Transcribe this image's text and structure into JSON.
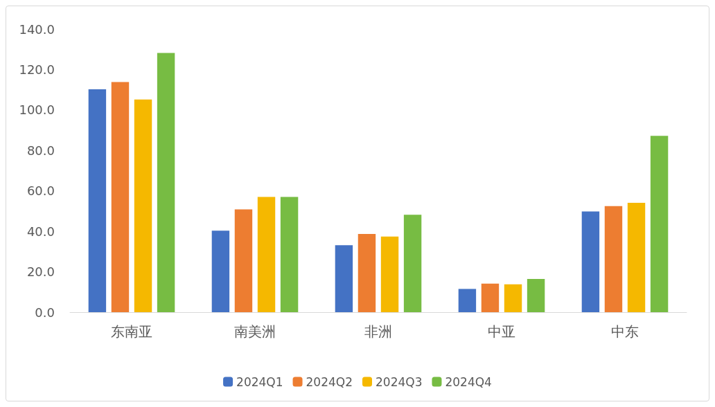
{
  "chart_data": {
    "type": "bar",
    "categories": [
      "东南亚",
      "南美洲",
      "非洲",
      "中亚",
      "中东"
    ],
    "series": [
      {
        "name": "2024Q1",
        "color": "#4472c4",
        "values": [
          110.2,
          40.3,
          33.1,
          11.5,
          49.8
        ]
      },
      {
        "name": "2024Q2",
        "color": "#ed7d31",
        "values": [
          113.8,
          50.8,
          38.7,
          14.1,
          52.5
        ]
      },
      {
        "name": "2024Q3",
        "color": "#f5b800",
        "values": [
          105.2,
          57.0,
          37.4,
          13.8,
          54.1
        ]
      },
      {
        "name": "2024Q4",
        "color": "#77bc43",
        "values": [
          128.2,
          57.0,
          48.2,
          16.4,
          87.2
        ]
      }
    ],
    "ylim": [
      0,
      140
    ],
    "yticks": [
      {
        "value": 0,
        "label": "0.0"
      },
      {
        "value": 20,
        "label": "20.0"
      },
      {
        "value": 40,
        "label": "40.0"
      },
      {
        "value": 60,
        "label": "60.0"
      },
      {
        "value": 80,
        "label": "80.0"
      },
      {
        "value": 100,
        "label": "100.0"
      },
      {
        "value": 120,
        "label": "120.0"
      },
      {
        "value": 140,
        "label": "140.0"
      }
    ],
    "grid": false,
    "legend": "bottom"
  }
}
